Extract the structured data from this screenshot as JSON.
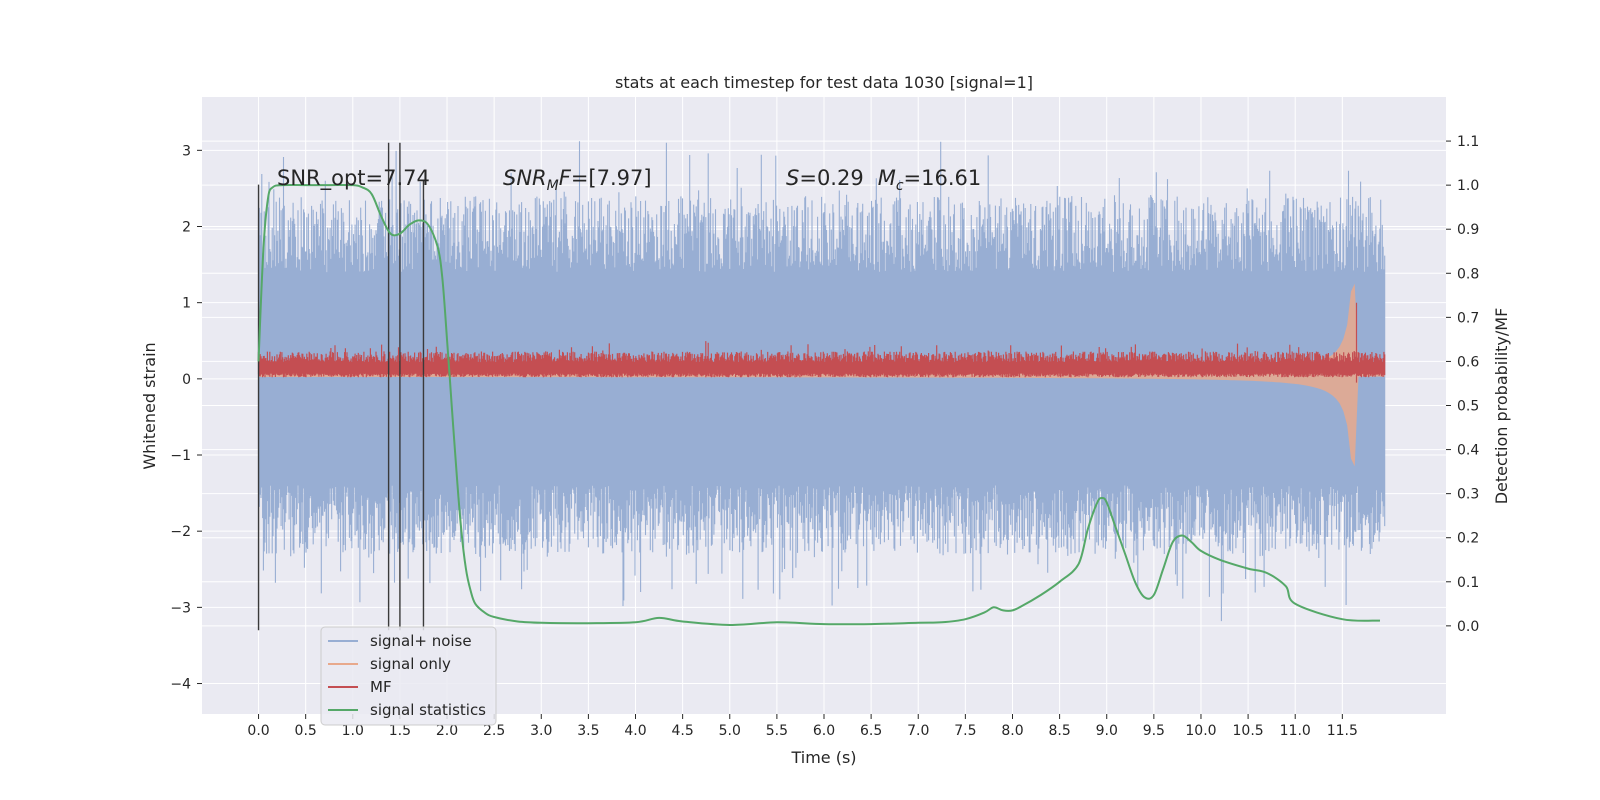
{
  "chart_data": {
    "type": "line",
    "title": "stats at each timestep for test data 1030 [signal=1]",
    "xlabel": "Time (s)",
    "ylabel": "Whitened strain",
    "ylabel_right": "Detection probability/MF",
    "xlim": [
      -0.6,
      12.6
    ],
    "ylim": [
      -4.4,
      3.7
    ],
    "ylim_right": [
      -0.2,
      1.2
    ],
    "x_ticks": [
      "0.0",
      "0.5",
      "1.0",
      "1.5",
      "2.0",
      "2.5",
      "3.0",
      "3.5",
      "4.0",
      "4.5",
      "5.0",
      "5.5",
      "6.0",
      "6.5",
      "7.0",
      "7.5",
      "8.0",
      "8.5",
      "9.0",
      "9.5",
      "10.0",
      "10.5",
      "11.0",
      "11.5"
    ],
    "y_ticks": [
      "3",
      "2",
      "1",
      "0",
      "−1",
      "−2",
      "−3",
      "−4"
    ],
    "y_ticks_right": [
      "1.1",
      "1.0",
      "0.9",
      "0.8",
      "0.7",
      "0.6",
      "0.5",
      "0.4",
      "0.3",
      "0.2",
      "0.1",
      "0.0"
    ],
    "annotations": {
      "snr_opt": "SNR_opt=7.74",
      "snr_mf": "SNR<sub>M</sub>F=[7.97]",
      "snr_mf_parts": {
        "snr": "SNR",
        "sub": "M",
        "rest": "F=[7.97]"
      },
      "s_part": {
        "s": "S",
        "s_val": "=0.29",
        "m": "M",
        "m_sub": "c",
        "m_val": "=16.61"
      }
    },
    "legend": {
      "placement": "lower-left",
      "entries": [
        "signal+ noise",
        "signal only",
        "MF",
        "signal statistics"
      ]
    },
    "colors": {
      "noise": "#98aed3",
      "signal_only": "#e8a98c",
      "mf": "#c44e52",
      "stat": "#55a868",
      "vline": "#3a3a3a",
      "background": "#eaeaf2",
      "grid": "#ffffff"
    },
    "time_range": [
      0.0,
      11.95
    ],
    "vertical_lines_x": [
      0.0,
      1.38,
      1.5,
      1.75
    ],
    "series": [
      {
        "name": "signal statistics",
        "axis": "right",
        "x": [
          0.0,
          0.05,
          0.1,
          0.15,
          0.25,
          0.5,
          0.75,
          1.0,
          1.1,
          1.2,
          1.3,
          1.4,
          1.5,
          1.6,
          1.7,
          1.8,
          1.9,
          1.95,
          2.0,
          2.05,
          2.1,
          2.15,
          2.2,
          2.25,
          2.3,
          2.4,
          2.5,
          2.75,
          3.0,
          3.5,
          4.0,
          4.25,
          4.5,
          5.0,
          5.5,
          6.0,
          6.5,
          7.0,
          7.25,
          7.5,
          7.7,
          7.8,
          7.9,
          8.0,
          8.1,
          8.3,
          8.5,
          8.7,
          8.8,
          8.9,
          8.95,
          9.0,
          9.1,
          9.2,
          9.3,
          9.4,
          9.5,
          9.6,
          9.7,
          9.8,
          9.9,
          10.0,
          10.2,
          10.5,
          10.7,
          10.9,
          11.0,
          11.5,
          11.9
        ],
        "y": [
          0.6,
          0.85,
          0.97,
          0.995,
          1.0,
          1.0,
          1.0,
          1.0,
          0.995,
          0.98,
          0.93,
          0.89,
          0.89,
          0.91,
          0.92,
          0.91,
          0.86,
          0.79,
          0.65,
          0.5,
          0.35,
          0.22,
          0.13,
          0.08,
          0.05,
          0.03,
          0.02,
          0.01,
          0.007,
          0.006,
          0.008,
          0.018,
          0.01,
          0.002,
          0.008,
          0.004,
          0.004,
          0.007,
          0.008,
          0.015,
          0.03,
          0.042,
          0.035,
          0.035,
          0.045,
          0.07,
          0.1,
          0.14,
          0.22,
          0.28,
          0.29,
          0.28,
          0.22,
          0.16,
          0.1,
          0.065,
          0.07,
          0.13,
          0.19,
          0.205,
          0.19,
          0.17,
          0.15,
          0.13,
          0.12,
          0.09,
          0.05,
          0.015,
          0.012
        ]
      }
    ]
  }
}
